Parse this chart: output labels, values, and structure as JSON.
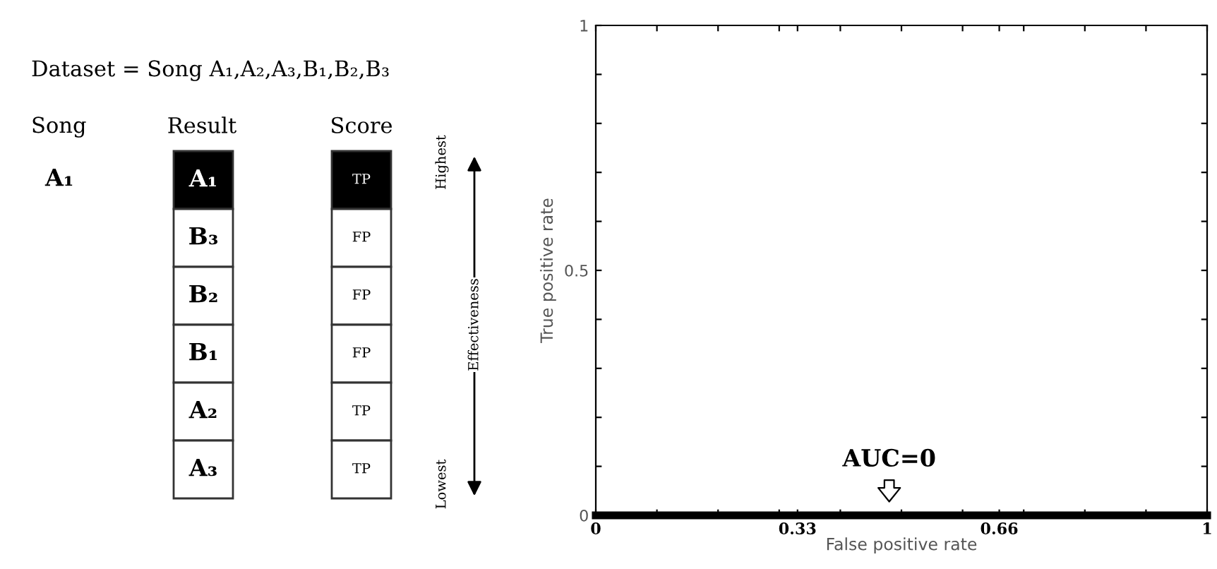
{
  "chart_data": [
    {
      "type": "other",
      "title": "Dataset = Song A₁,A₂,A₃,B₁,B₂,B₃",
      "annotations": [
        "Song",
        "Result",
        "Score",
        "A₁",
        "A₁",
        "B₃",
        "B₂",
        "B₁",
        "A₂",
        "A₃",
        "TP",
        "FP",
        "FP",
        "FP",
        "TP",
        "TP",
        "Highest",
        "Effectiveness",
        "Lowest"
      ]
    },
    {
      "type": "line",
      "xlabel": "False positive rate",
      "ylabel": "True positive rate",
      "series": [
        {
          "color": "#000000",
          "x": [
            0,
            1
          ],
          "values": [
            0,
            0
          ]
        }
      ],
      "xlim": [
        0,
        1
      ],
      "ylim": [
        0,
        1
      ],
      "xticks": [
        0,
        {
          "value": 0.1,
          "label": null
        },
        {
          "value": 0.2,
          "label": null
        },
        0.33,
        {
          "value": 0.3,
          "label": null
        },
        {
          "value": 0.4,
          "label": null
        },
        {
          "value": 0.5,
          "label": null
        },
        {
          "value": 0.6,
          "label": null
        },
        0.66,
        {
          "value": 0.7,
          "label": null
        },
        {
          "value": 0.8,
          "label": null
        },
        {
          "value": 0.9,
          "label": null
        },
        1
      ],
      "yticks": [
        0,
        {
          "value": 0.1,
          "label": null
        },
        {
          "value": 0.2,
          "label": null
        },
        {
          "value": 0.3,
          "label": null
        },
        {
          "value": 0.4,
          "label": null
        },
        0.5,
        {
          "value": 0.6,
          "label": null
        },
        {
          "value": 0.7,
          "label": null
        },
        {
          "value": 0.8,
          "label": null
        },
        {
          "value": 0.9,
          "label": null
        },
        1
      ],
      "annotations": [
        {
          "text": "AUC=0",
          "x": 0.48,
          "y": 0
        }
      ],
      "grid": false,
      "legend": false
    }
  ]
}
